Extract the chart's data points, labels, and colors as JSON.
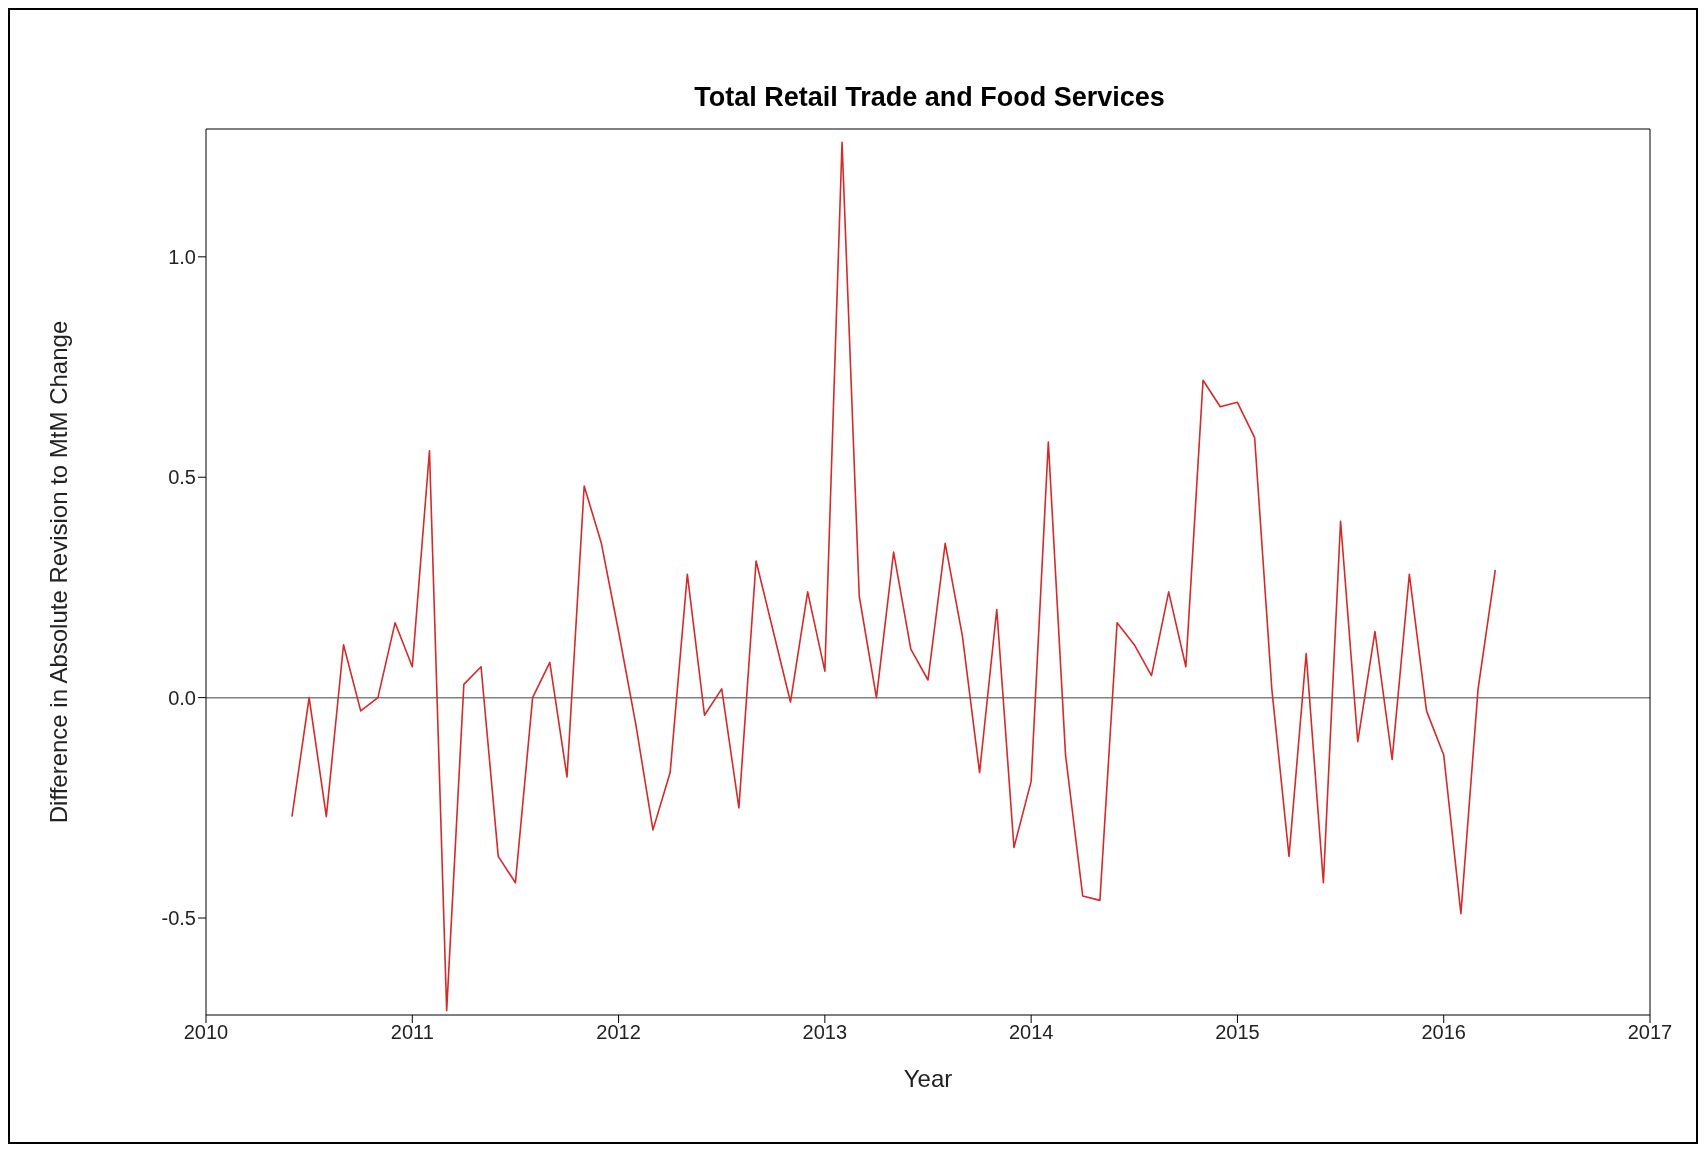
{
  "chart_data": {
    "type": "line",
    "title": "Total Retail Trade and Food Services",
    "xlabel": "Year",
    "ylabel": "Difference in Absolute Revision to MtM Change",
    "x": [
      "2010-06",
      "2010-07",
      "2010-08",
      "2010-09",
      "2010-10",
      "2010-11",
      "2010-12",
      "2011-01",
      "2011-02",
      "2011-03",
      "2011-04",
      "2011-05",
      "2011-06",
      "2011-07",
      "2011-08",
      "2011-09",
      "2011-10",
      "2011-11",
      "2011-12",
      "2012-01",
      "2012-02",
      "2012-03",
      "2012-04",
      "2012-05",
      "2012-06",
      "2012-07",
      "2012-08",
      "2012-09",
      "2012-10",
      "2012-11",
      "2012-12",
      "2013-01",
      "2013-02",
      "2013-03",
      "2013-04",
      "2013-05",
      "2013-06",
      "2013-07",
      "2013-08",
      "2013-09",
      "2013-10",
      "2013-11",
      "2013-12",
      "2014-01",
      "2014-02",
      "2014-03",
      "2014-04",
      "2014-05",
      "2014-06",
      "2014-07",
      "2014-08",
      "2014-09",
      "2014-10",
      "2014-11",
      "2014-12",
      "2015-01",
      "2015-02",
      "2015-03",
      "2015-04",
      "2015-05",
      "2015-06",
      "2015-07",
      "2015-08",
      "2015-09",
      "2015-10",
      "2015-11",
      "2015-12",
      "2016-01",
      "2016-02",
      "2016-03",
      "2016-04"
    ],
    "series": [
      {
        "color": "#d42a2a",
        "values": [
          -0.27,
          0.0,
          -0.27,
          0.12,
          -0.03,
          0.0,
          0.17,
          0.07,
          0.56,
          -0.71,
          0.03,
          0.07,
          -0.36,
          -0.42,
          0.0,
          0.08,
          -0.18,
          0.48,
          0.35,
          0.15,
          -0.06,
          -0.3,
          -0.17,
          0.28,
          -0.04,
          0.02,
          -0.25,
          0.31,
          0.15,
          -0.01,
          0.24,
          0.06,
          1.26,
          0.23,
          0.0,
          0.33,
          0.11,
          0.04,
          0.35,
          0.14,
          -0.17,
          0.2,
          -0.34,
          -0.19,
          0.58,
          -0.13,
          -0.45,
          -0.46,
          0.17,
          0.12,
          0.05,
          0.24,
          0.07,
          0.72,
          0.66,
          0.67,
          0.59,
          0.02,
          -0.36,
          0.1,
          -0.42,
          0.4,
          -0.1,
          0.15,
          -0.14,
          0.28,
          -0.03,
          -0.13,
          -0.49,
          0.02,
          0.29
        ]
      }
    ],
    "xlim": [
      "2010",
      "2017"
    ],
    "xticks": [
      {
        "value": "2010",
        "label": "2010"
      },
      {
        "value": "2011",
        "label": "2011"
      },
      {
        "value": "2012",
        "label": "2012"
      },
      {
        "value": "2013",
        "label": "2013"
      },
      {
        "value": "2014",
        "label": "2014"
      },
      {
        "value": "2015",
        "label": "2015"
      },
      {
        "value": "2016",
        "label": "2016"
      },
      {
        "value": "2017",
        "label": "2017"
      }
    ],
    "ylim": [
      -0.72,
      1.29
    ],
    "yticks": [
      {
        "value": -0.5,
        "label": "-0.5"
      },
      {
        "value": 0,
        "label": "0.0"
      },
      {
        "value": 0.5,
        "label": "0.5"
      },
      {
        "value": 1,
        "label": "1.0"
      }
    ],
    "ref_lines": [
      {
        "axis": "y",
        "value": 0,
        "color": "#808080"
      }
    ],
    "grid": false,
    "legend": false,
    "marker": "none",
    "line_style": "solid"
  }
}
